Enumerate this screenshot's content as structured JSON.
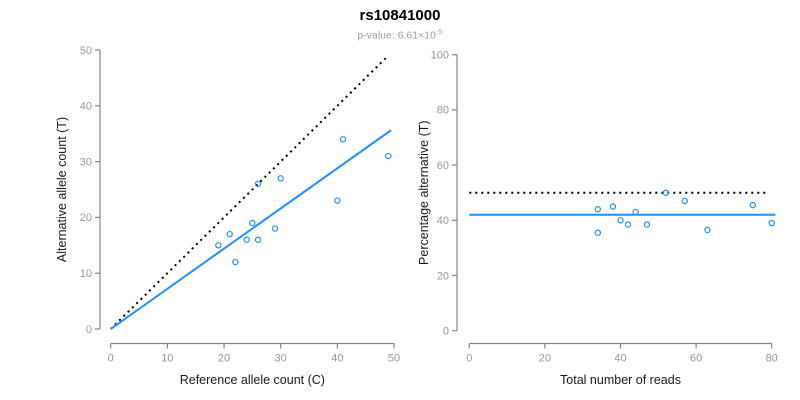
{
  "header": {
    "title": "rs10841000",
    "subtitle_text": "p-value: 6.61×10",
    "subtitle_exponent": "-5"
  },
  "colors": {
    "accent_blue": "#1E90FF",
    "reference_black": "#000000",
    "axis_gray": "#858585",
    "tick_text_gray": "#979797",
    "axis_title_color": "#1a1a1a",
    "background": "#ffffff"
  },
  "chart_data": [
    {
      "name": "allele-counts-scatter",
      "type": "scatter",
      "xlabel": "Reference allele count (C)",
      "ylabel": "Alternative allele count (T)",
      "xlim": [
        0,
        50
      ],
      "ylim": [
        0,
        50
      ],
      "xticks": [
        0,
        10,
        20,
        30,
        40,
        50
      ],
      "yticks": [
        0,
        10,
        20,
        30,
        40,
        50
      ],
      "grid": false,
      "points": [
        [
          19,
          15
        ],
        [
          21,
          17
        ],
        [
          22,
          12
        ],
        [
          24,
          16
        ],
        [
          25,
          19
        ],
        [
          26,
          16
        ],
        [
          26,
          26
        ],
        [
          29,
          18
        ],
        [
          30,
          27
        ],
        [
          40,
          23
        ],
        [
          41,
          34
        ],
        [
          49,
          31
        ]
      ],
      "lines": [
        {
          "name": "identity-line",
          "slope": 1,
          "intercept": 0,
          "x_range": [
            0,
            49
          ],
          "style": "dotted",
          "color": "#000000"
        },
        {
          "name": "fit-line",
          "slope": 0.72,
          "intercept": 0,
          "x_range": [
            0,
            49.5
          ],
          "style": "solid",
          "color": "#1E90FF"
        }
      ]
    },
    {
      "name": "percentage-scatter",
      "type": "scatter",
      "xlabel": "Total number of reads",
      "ylabel": "Percentage alternative (T)",
      "xlim": [
        0,
        80
      ],
      "ylim": [
        0,
        100
      ],
      "xticks": [
        0,
        20,
        40,
        60,
        80
      ],
      "yticks": [
        0,
        20,
        40,
        60,
        80,
        100
      ],
      "grid": false,
      "points": [
        [
          34,
          35.5
        ],
        [
          34,
          44
        ],
        [
          38,
          45
        ],
        [
          40,
          40
        ],
        [
          42,
          38.5
        ],
        [
          44,
          43
        ],
        [
          47,
          38.5
        ],
        [
          52,
          50
        ],
        [
          57,
          47
        ],
        [
          63,
          36.5
        ],
        [
          75,
          45.5
        ],
        [
          80,
          39
        ]
      ],
      "lines": [
        {
          "name": "expected-50-percent-line",
          "slope": 0,
          "intercept": 50,
          "x_range": [
            0,
            78.7
          ],
          "style": "dotted",
          "color": "#000000"
        },
        {
          "name": "mean-percentage-line",
          "slope": 0,
          "intercept": 42,
          "x_range": [
            0,
            81
          ],
          "style": "solid",
          "color": "#1E90FF"
        }
      ]
    }
  ]
}
